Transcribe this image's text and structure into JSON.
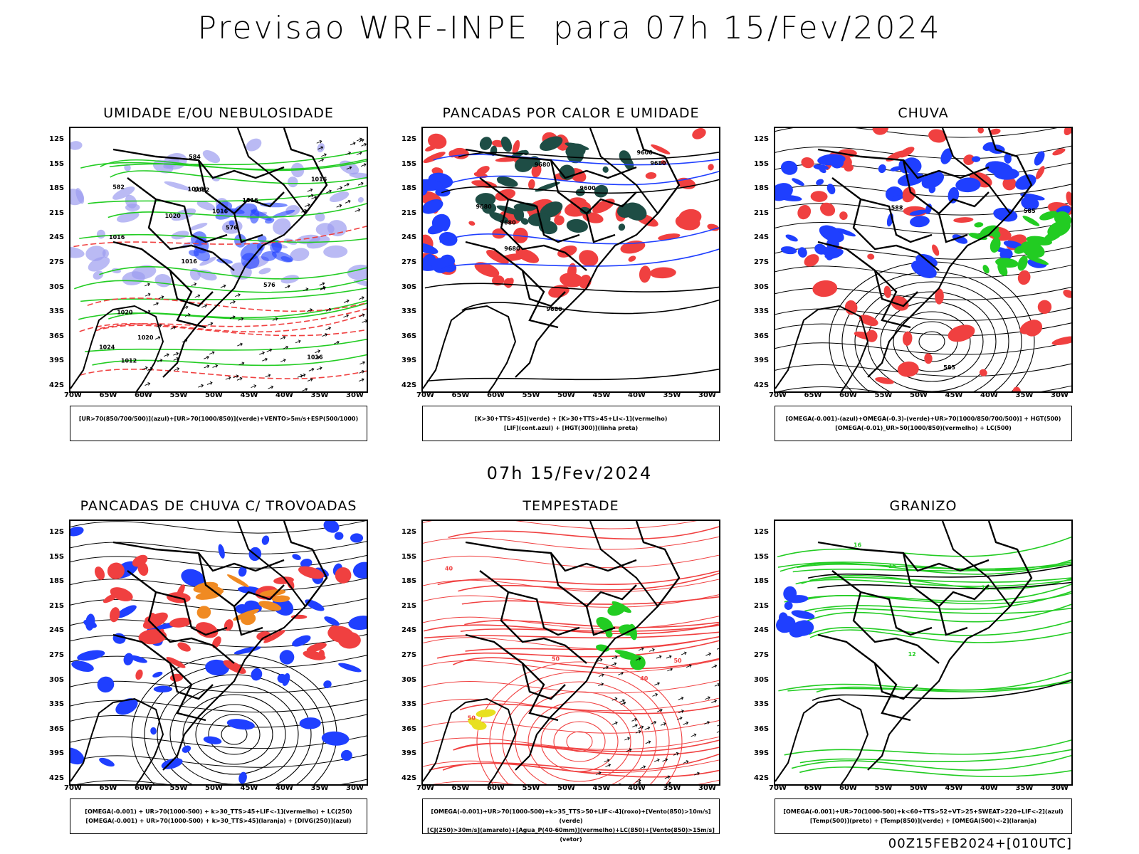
{
  "title": "Previsao WRF-INPE  para 07h 15/Fev/2024",
  "mid_date": "07h 15/Fev/2024",
  "footer": "00Z15FEB2024+[010UTC]",
  "lat_labels": [
    "12S",
    "15S",
    "18S",
    "21S",
    "24S",
    "27S",
    "30S",
    "33S",
    "36S",
    "39S",
    "42S"
  ],
  "lon_labels": [
    "70W",
    "65W",
    "60W",
    "55W",
    "50W",
    "45W",
    "40W",
    "35W",
    "30W"
  ],
  "colors": {
    "blue": "#1f3fff",
    "green": "#22cc22",
    "red": "#f04040",
    "dark_green": "#1e4d45",
    "lavender": "#9c9cf0",
    "orange": "#f08a22",
    "yellow": "#e8e020"
  },
  "panels": [
    {
      "title": "UMIDADE E/OU NEBULOSIDADE",
      "caption": [
        "[UR>70(850/700/500)](azul)+[UR>70(1000/850)](verde)+VENTO>5m/s+ESP(500/1000)"
      ],
      "contour_labels": [
        "1016",
        "1016",
        "1016",
        "1016",
        "1016",
        "1012",
        "1016",
        "1016",
        "1020",
        "1020",
        "1024",
        "1020",
        "1012",
        "576",
        "576",
        "582",
        "584"
      ]
    },
    {
      "title": "PANCADAS POR CALOR E UMIDADE",
      "caption": [
        "[K>30+TTS>45](verde)  +  [K>30+TTS>45+LI<-1](vermelho)",
        "[LIF](cont.azul)  +  [HGT(300)](linha preta)"
      ],
      "contour_labels": [
        "9680",
        "9680",
        "9680",
        "9680",
        "9680",
        "9680",
        "9600",
        "9600"
      ]
    },
    {
      "title": "CHUVA",
      "caption": [
        "[OMEGA(-0.001)-(azul)+OMEGA(-0.3)-(verde)+UR>70(1000/850/700/500)]  +  HGT(500)",
        "[OMEGA(-0.01)_UR>50(1000/850)(vermelho)  +  LC(500)"
      ],
      "contour_labels": [
        "585",
        "588",
        "585"
      ]
    },
    {
      "title": "PANCADAS DE CHUVA C/ TROVOADAS",
      "caption": [
        "[OMEGA(-0.001)  +  UR>70(1000-500)  +  k>30_TTS>45+LIF<-1](vermelho)  +  LC(250)",
        "[OMEGA(-0.001)  +  UR>70(1000-500)  +  k>30_TTS>45](laranja)  +  [DIVG(250)](azul)"
      ],
      "contour_labels": []
    },
    {
      "title": "TEMPESTADE",
      "caption": [
        "[OMEGA(-0.001)+UR>70(1000-500)+k>35_TTS>50+LIF<-4](roxo)+[Vento(850)>10m/s](verde)",
        "[CJ(250)>30m/s](amarelo)+[Agua_P(40-60mm)](vermelho)+LC(850)+[Vento(850)>15m/s](vetor)"
      ],
      "contour_labels": [
        "50",
        "50",
        "40",
        "40",
        "50"
      ]
    },
    {
      "title": "GRANIZO",
      "caption": [
        "[OMEGA(-0.001)+UR>70(1000-500)+k<60+TTS>52+VT>25+SWEAT>220+LIF<-2](azul)",
        "[Temp(500)](preto)  +  [Temp(850)](verde)  +  [OMEGA(500)<-2](laranja)"
      ],
      "contour_labels": [
        "12",
        "12",
        "15",
        "16"
      ]
    }
  ]
}
